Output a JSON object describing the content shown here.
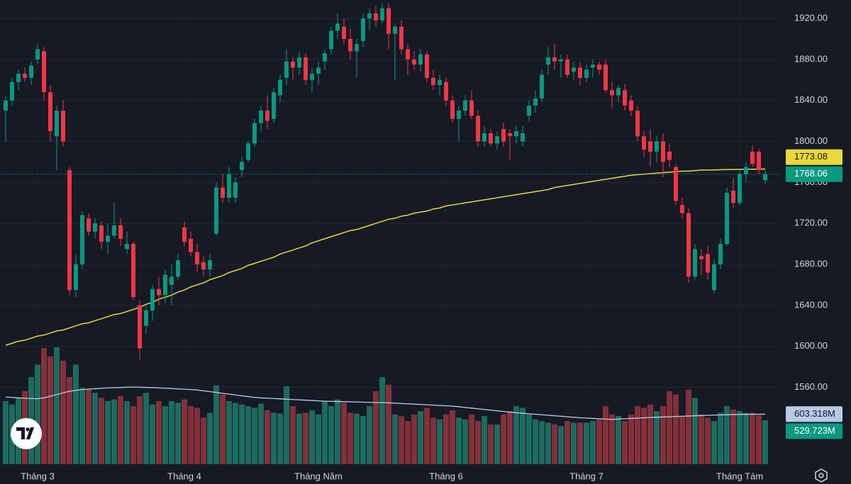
{
  "chart_data": {
    "type": "candlestick",
    "categories": [
      null,
      null,
      null,
      null,
      null,
      "Tháng 3",
      null,
      null,
      null,
      null,
      null,
      null,
      null,
      null,
      null,
      null,
      null,
      null,
      null,
      null,
      null,
      null,
      null,
      null,
      null,
      null,
      null,
      null,
      "Tháng 4",
      null,
      null,
      null,
      null,
      null,
      null,
      null,
      null,
      null,
      null,
      null,
      null,
      null,
      null,
      null,
      null,
      null,
      null,
      null,
      null,
      "Tháng Năm",
      null,
      null,
      null,
      null,
      null,
      null,
      null,
      null,
      null,
      null,
      null,
      null,
      null,
      null,
      null,
      null,
      null,
      null,
      null,
      "Tháng 6",
      null,
      null,
      null,
      null,
      null,
      null,
      null,
      null,
      null,
      null,
      null,
      null,
      null,
      null,
      null,
      null,
      null,
      null,
      null,
      null,
      null,
      "Tháng 7",
      null,
      null,
      null,
      null,
      null,
      null,
      null,
      null,
      null,
      null,
      null,
      null,
      null,
      null,
      null,
      null,
      null,
      null,
      null,
      null,
      null,
      null,
      null,
      "Tháng Tám",
      null,
      null,
      null,
      null
    ],
    "ohlc": [
      [
        1830,
        1845,
        1800,
        1840
      ],
      [
        1840,
        1862,
        1835,
        1858
      ],
      [
        1858,
        1870,
        1850,
        1866
      ],
      [
        1866,
        1872,
        1858,
        1862
      ],
      [
        1862,
        1878,
        1855,
        1874
      ],
      [
        1880,
        1895,
        1875,
        1890
      ],
      [
        1888,
        1892,
        1840,
        1848
      ],
      [
        1848,
        1855,
        1800,
        1810
      ],
      [
        1805,
        1835,
        1772,
        1830
      ],
      [
        1830,
        1840,
        1795,
        1800
      ],
      [
        1772,
        1775,
        1650,
        1655
      ],
      [
        1655,
        1690,
        1648,
        1680
      ],
      [
        1680,
        1732,
        1675,
        1728
      ],
      [
        1725,
        1730,
        1708,
        1712
      ],
      [
        1712,
        1725,
        1705,
        1720
      ],
      [
        1718,
        1722,
        1695,
        1702
      ],
      [
        1702,
        1720,
        1690,
        1708
      ],
      [
        1708,
        1740,
        1705,
        1718
      ],
      [
        1718,
        1725,
        1698,
        1705
      ],
      [
        1695,
        1712,
        1690,
        1700
      ],
      [
        1700,
        1702,
        1645,
        1648
      ],
      [
        1640,
        1645,
        1587,
        1598
      ],
      [
        1620,
        1640,
        1612,
        1635
      ],
      [
        1635,
        1660,
        1625,
        1656
      ],
      [
        1656,
        1668,
        1640,
        1650
      ],
      [
        1650,
        1675,
        1642,
        1670
      ],
      [
        1660,
        1680,
        1640,
        1668
      ],
      [
        1668,
        1690,
        1665,
        1684
      ],
      [
        1716,
        1722,
        1698,
        1702
      ],
      [
        1705,
        1712,
        1688,
        1692
      ],
      [
        1692,
        1700,
        1672,
        1680
      ],
      [
        1682,
        1688,
        1668,
        1675
      ],
      [
        1675,
        1690,
        1668,
        1684
      ],
      [
        1710,
        1760,
        1708,
        1755
      ],
      [
        1755,
        1768,
        1740,
        1745
      ],
      [
        1745,
        1775,
        1740,
        1768
      ],
      [
        1745,
        1765,
        1740,
        1760
      ],
      [
        1772,
        1785,
        1765,
        1780
      ],
      [
        1782,
        1800,
        1780,
        1798
      ],
      [
        1798,
        1822,
        1795,
        1818
      ],
      [
        1818,
        1835,
        1810,
        1830
      ],
      [
        1830,
        1845,
        1812,
        1820
      ],
      [
        1822,
        1852,
        1818,
        1848
      ],
      [
        1845,
        1865,
        1838,
        1860
      ],
      [
        1862,
        1890,
        1855,
        1878
      ],
      [
        1878,
        1882,
        1860,
        1872
      ],
      [
        1872,
        1888,
        1865,
        1882
      ],
      [
        1882,
        1886,
        1855,
        1860
      ],
      [
        1860,
        1872,
        1848,
        1866
      ],
      [
        1866,
        1878,
        1855,
        1872
      ],
      [
        1878,
        1890,
        1870,
        1886
      ],
      [
        1890,
        1912,
        1885,
        1908
      ],
      [
        1908,
        1925,
        1900,
        1915
      ],
      [
        1912,
        1920,
        1895,
        1900
      ],
      [
        1900,
        1910,
        1880,
        1888
      ],
      [
        1888,
        1900,
        1862,
        1895
      ],
      [
        1898,
        1925,
        1892,
        1920
      ],
      [
        1920,
        1930,
        1908,
        1925
      ],
      [
        1925,
        1932,
        1912,
        1918
      ],
      [
        1918,
        1935,
        1915,
        1930
      ],
      [
        1930,
        1935,
        1890,
        1905
      ],
      [
        1905,
        1915,
        1860,
        1912
      ],
      [
        1912,
        1918,
        1885,
        1890
      ],
      [
        1890,
        1895,
        1865,
        1880
      ],
      [
        1880,
        1888,
        1870,
        1875
      ],
      [
        1875,
        1890,
        1868,
        1885
      ],
      [
        1885,
        1888,
        1858,
        1862
      ],
      [
        1862,
        1870,
        1850,
        1855
      ],
      [
        1855,
        1865,
        1845,
        1860
      ],
      [
        1858,
        1862,
        1835,
        1840
      ],
      [
        1840,
        1845,
        1818,
        1822
      ],
      [
        1822,
        1835,
        1800,
        1830
      ],
      [
        1830,
        1845,
        1825,
        1840
      ],
      [
        1840,
        1850,
        1822,
        1825
      ],
      [
        1825,
        1830,
        1795,
        1800
      ],
      [
        1800,
        1815,
        1795,
        1808
      ],
      [
        1808,
        1812,
        1795,
        1798
      ],
      [
        1798,
        1810,
        1792,
        1805
      ],
      [
        1812,
        1818,
        1795,
        1800
      ],
      [
        1808,
        1812,
        1782,
        1805
      ],
      [
        1805,
        1815,
        1798,
        1810
      ],
      [
        1800,
        1815,
        1795,
        1808
      ],
      [
        1825,
        1840,
        1820,
        1835
      ],
      [
        1835,
        1850,
        1828,
        1842
      ],
      [
        1842,
        1870,
        1838,
        1865
      ],
      [
        1875,
        1892,
        1865,
        1882
      ],
      [
        1882,
        1895,
        1870,
        1878
      ],
      [
        1878,
        1885,
        1862,
        1880
      ],
      [
        1880,
        1885,
        1862,
        1865
      ],
      [
        1868,
        1878,
        1860,
        1872
      ],
      [
        1872,
        1878,
        1855,
        1862
      ],
      [
        1862,
        1875,
        1858,
        1870
      ],
      [
        1872,
        1880,
        1862,
        1875
      ],
      [
        1875,
        1878,
        1865,
        1870
      ],
      [
        1875,
        1880,
        1848,
        1850
      ],
      [
        1850,
        1858,
        1832,
        1845
      ],
      [
        1845,
        1855,
        1838,
        1852
      ],
      [
        1850,
        1856,
        1830,
        1835
      ],
      [
        1840,
        1845,
        1825,
        1830
      ],
      [
        1830,
        1835,
        1800,
        1805
      ],
      [
        1805,
        1810,
        1785,
        1792
      ],
      [
        1800,
        1812,
        1775,
        1790
      ],
      [
        1790,
        1805,
        1780,
        1800
      ],
      [
        1800,
        1808,
        1765,
        1780
      ],
      [
        1790,
        1798,
        1775,
        1782
      ],
      [
        1775,
        1778,
        1738,
        1742
      ],
      [
        1738,
        1745,
        1725,
        1730
      ],
      [
        1730,
        1735,
        1662,
        1668
      ],
      [
        1668,
        1700,
        1665,
        1695
      ],
      [
        1688,
        1695,
        1670,
        1685
      ],
      [
        1690,
        1698,
        1665,
        1672
      ],
      [
        1655,
        1685,
        1652,
        1680
      ],
      [
        1680,
        1705,
        1675,
        1700
      ],
      [
        1700,
        1755,
        1698,
        1750
      ],
      [
        1752,
        1765,
        1735,
        1740
      ],
      [
        1740,
        1772,
        1738,
        1768
      ],
      [
        1768,
        1780,
        1760,
        1775
      ],
      [
        1790,
        1796,
        1775,
        1778
      ],
      [
        1790,
        1793,
        1768,
        1772
      ],
      [
        1762,
        1772,
        1758,
        1768.06
      ]
    ],
    "up_color": "#089981",
    "down_color": "#f23645",
    "last_value_label": "1768.06",
    "ylim": [
      1485,
      1938
    ],
    "yticks": [
      {
        "value": 1560,
        "label": "1560.00"
      },
      {
        "value": 1600,
        "label": "1600.00"
      },
      {
        "value": 1640,
        "label": "1640.00"
      },
      {
        "value": 1680,
        "label": "1680.00"
      },
      {
        "value": 1720,
        "label": "1720.00"
      },
      {
        "value": 1760,
        "label": "1760.00"
      },
      {
        "value": 1800,
        "label": "1800.00"
      },
      {
        "value": 1840,
        "label": "1840.00"
      },
      {
        "value": 1880,
        "label": "1880.00"
      },
      {
        "value": 1920,
        "label": "1920.00"
      }
    ],
    "ma": {
      "color": "#e8d83a",
      "value_label": "1773.08",
      "values": [
        1601,
        1603,
        1605,
        1606,
        1608,
        1610,
        1611,
        1613,
        1615,
        1616,
        1618,
        1620,
        1622,
        1623,
        1625,
        1627,
        1629,
        1631,
        1632,
        1634,
        1636,
        1638,
        1641,
        1643,
        1646,
        1648,
        1650,
        1653,
        1655,
        1658,
        1660,
        1662,
        1665,
        1667,
        1669,
        1672,
        1674,
        1676,
        1679,
        1681,
        1683,
        1685,
        1687,
        1690,
        1692,
        1694,
        1696,
        1698,
        1701,
        1703,
        1705,
        1707,
        1709,
        1711,
        1713,
        1714,
        1716,
        1718,
        1720,
        1722,
        1724,
        1725,
        1727,
        1728,
        1730,
        1731,
        1732,
        1734,
        1735,
        1737,
        1738,
        1739,
        1740,
        1741,
        1742,
        1743,
        1744,
        1745,
        1746,
        1747,
        1748,
        1749,
        1750,
        1751,
        1752,
        1753,
        1755,
        1756,
        1757,
        1758,
        1759,
        1760,
        1761,
        1762,
        1763,
        1764,
        1765,
        1766,
        1767,
        1767.5,
        1768,
        1768.5,
        1769,
        1769.5,
        1770,
        1770.5,
        1771,
        1771,
        1771.5,
        1772,
        1772,
        1772.2,
        1772.4,
        1772.5,
        1772.6,
        1772.7,
        1772.8,
        1772.9,
        1773,
        1773.08
      ]
    },
    "volume": {
      "up_color": "#1c6b5f",
      "down_color": "#83303a",
      "ylim": [
        0,
        5600
      ],
      "value_label": "529.723M",
      "values": [
        760,
        720,
        800,
        880,
        1050,
        1200,
        1400,
        1300,
        1410,
        1250,
        1050,
        1200,
        920,
        900,
        860,
        800,
        760,
        780,
        820,
        760,
        700,
        820,
        860,
        720,
        760,
        700,
        760,
        740,
        780,
        700,
        680,
        560,
        620,
        950,
        840,
        760,
        740,
        720,
        700,
        680,
        730,
        650,
        620,
        610,
        940,
        700,
        610,
        620,
        650,
        600,
        760,
        700,
        780,
        740,
        620,
        610,
        580,
        700,
        880,
        1050,
        960,
        600,
        580,
        520,
        600,
        640,
        680,
        560,
        540,
        600,
        650,
        560,
        540,
        600,
        520,
        580,
        480,
        480,
        600,
        640,
        700,
        680,
        600,
        540,
        520,
        500,
        480,
        460,
        520,
        500,
        500,
        500,
        520,
        540,
        700,
        600,
        580,
        520,
        600,
        700,
        680,
        720,
        640,
        700,
        880,
        840,
        580,
        900,
        800,
        600,
        560,
        520,
        620,
        700,
        660,
        640,
        620,
        620,
        590,
        529.723
      ],
      "ma": {
        "color": "#b7cbe6",
        "value_label": "603.318M",
        "values": [
          810,
          805,
          800,
          795,
          792,
          790,
          800,
          820,
          840,
          860,
          880,
          890,
          900,
          905,
          910,
          915,
          920,
          922,
          925,
          928,
          930,
          928,
          926,
          924,
          920,
          916,
          912,
          908,
          904,
          900,
          895,
          885,
          875,
          865,
          855,
          845,
          835,
          825,
          815,
          805,
          800,
          796,
          792,
          788,
          784,
          780,
          776,
          772,
          768,
          764,
          760,
          758,
          756,
          754,
          752,
          750,
          748,
          746,
          744,
          742,
          740,
          736,
          732,
          728,
          724,
          720,
          716,
          712,
          708,
          704,
          700,
          692,
          684,
          676,
          668,
          660,
          652,
          644,
          636,
          628,
          620,
          614,
          608,
          602,
          596,
          590,
          584,
          578,
          572,
          566,
          560,
          556,
          552,
          548,
          544,
          540,
          544,
          548,
          552,
          556,
          560,
          563,
          566,
          569,
          572,
          575,
          578,
          581,
          584,
          587,
          590,
          592,
          594,
          596,
          598,
          600,
          601,
          602,
          603,
          603.318
        ]
      }
    }
  }
}
